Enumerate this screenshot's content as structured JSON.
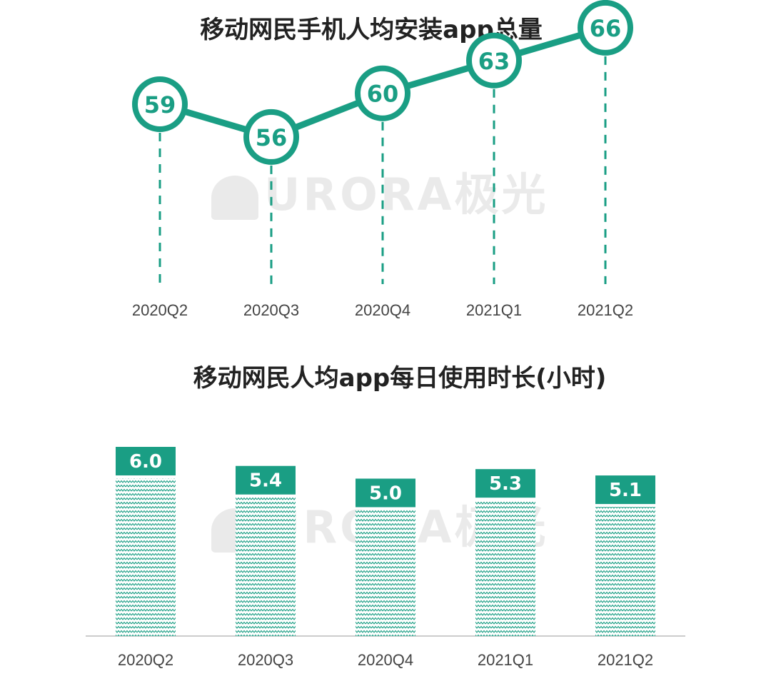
{
  "chart_data": [
    {
      "type": "line",
      "title": "移动网民手机人均安装app总量",
      "categories": [
        "2020Q2",
        "2020Q3",
        "2020Q4",
        "2021Q1",
        "2021Q2"
      ],
      "values": [
        59,
        56,
        60,
        63,
        66
      ],
      "data_labels": [
        "59",
        "56",
        "60",
        "63",
        "66"
      ],
      "xlabel": "",
      "ylabel": "",
      "grid": false,
      "color": "#1a9e84"
    },
    {
      "type": "bar",
      "title": "移动网民人均app每日使用时长(小时)",
      "categories": [
        "2020Q2",
        "2020Q3",
        "2020Q4",
        "2021Q1",
        "2021Q2"
      ],
      "values": [
        6.0,
        5.4,
        5.0,
        5.3,
        5.1
      ],
      "data_labels": [
        "6.0",
        "5.4",
        "5.0",
        "5.3",
        "5.1"
      ],
      "xlabel": "",
      "ylabel": "",
      "grid": false,
      "color": "#1a9e84"
    }
  ],
  "watermark": {
    "text": "URORA",
    "cn": "极光"
  }
}
